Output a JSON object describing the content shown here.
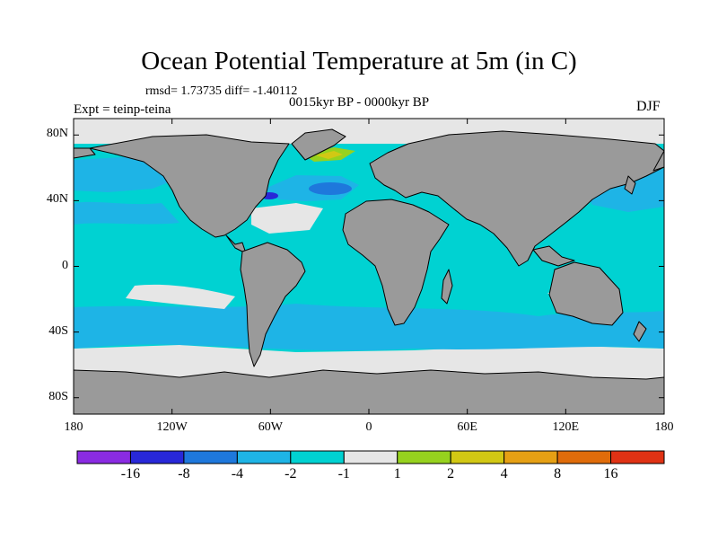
{
  "title": "Ocean Potential Temperature at 5m (in C)",
  "stats": "rmsd= 1.73735 diff= -1.40112",
  "period": "0015kyr BP - 0000kyr BP",
  "expt": "Expt = teinp-teina",
  "season": "DJF",
  "colors": {
    "land": "#9a9a9a",
    "neutral": "#e6e6e6",
    "coast": "#000000"
  },
  "map": {
    "lat_labels": [
      "80N",
      "40N",
      "0",
      "40S",
      "80S"
    ],
    "lat_values": [
      80,
      40,
      0,
      -40,
      -80
    ],
    "lon_labels": [
      "180",
      "120W",
      "60W",
      "0",
      "60E",
      "120E",
      "180"
    ],
    "lon_values": [
      -180,
      -120,
      -60,
      0,
      60,
      120,
      180
    ]
  },
  "colorbar": {
    "colors": [
      "#8a2be2",
      "#2828d8",
      "#1e78dc",
      "#1eb4e6",
      "#00d2d2",
      "#e6e6e6",
      "#96d21e",
      "#d2c814",
      "#e6a014",
      "#e06c0a",
      "#e03214"
    ],
    "labels": [
      "-16",
      "-8",
      "-4",
      "-2",
      "-1",
      "1",
      "2",
      "4",
      "8",
      "16"
    ]
  }
}
